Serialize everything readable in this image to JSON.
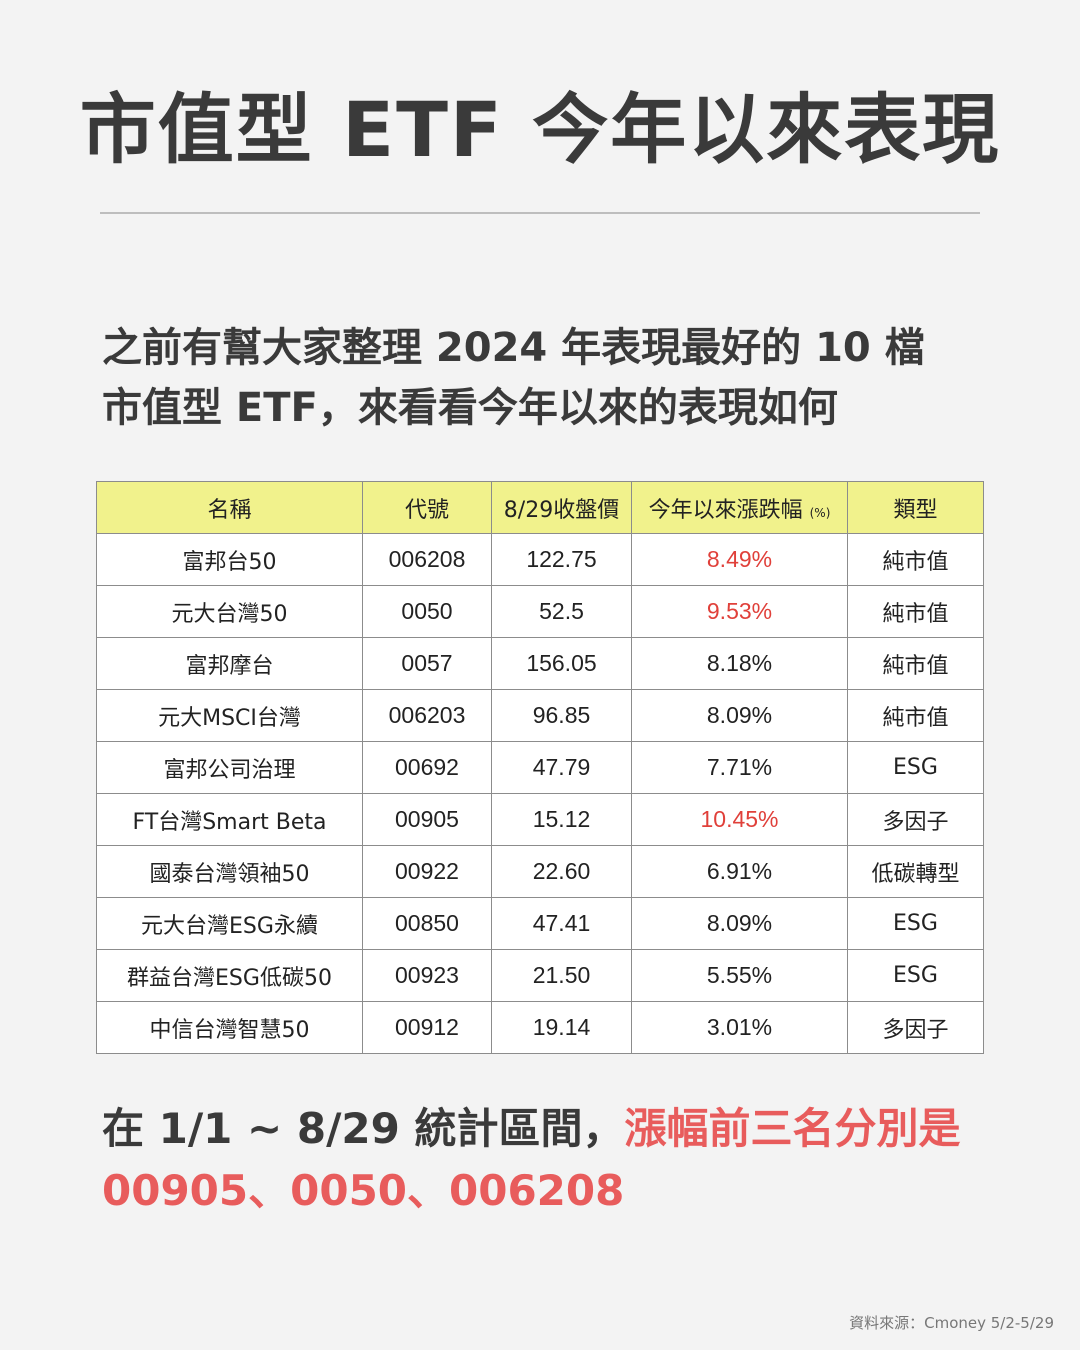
{
  "title": "市值型 ETF 今年以來表現",
  "intro": {
    "line1": "之前有幫大家整理 2024 年表現最好的 10 檔",
    "line2": "市值型 ETF，來看看今年以來的表現如何"
  },
  "table": {
    "headers": {
      "name": "名稱",
      "code": "代號",
      "price": "8/29收盤價",
      "change": "今年以來漲跌幅",
      "change_unit": "(%)",
      "type": "類型"
    },
    "rows": [
      {
        "name": "富邦台50",
        "code": "006208",
        "price": "122.75",
        "change": "8.49%",
        "type": "純市值",
        "highlight": true
      },
      {
        "name": "元大台灣50",
        "code": "0050",
        "price": "52.5",
        "change": "9.53%",
        "type": "純市值",
        "highlight": true
      },
      {
        "name": "富邦摩台",
        "code": "0057",
        "price": "156.05",
        "change": "8.18%",
        "type": "純市值",
        "highlight": false
      },
      {
        "name": "元大MSCI台灣",
        "code": "006203",
        "price": "96.85",
        "change": "8.09%",
        "type": "純市值",
        "highlight": false
      },
      {
        "name": "富邦公司治理",
        "code": "00692",
        "price": "47.79",
        "change": "7.71%",
        "type": "ESG",
        "highlight": false
      },
      {
        "name": "FT台灣Smart Beta",
        "code": "00905",
        "price": "15.12",
        "change": "10.45%",
        "type": "多因子",
        "highlight": true
      },
      {
        "name": "國泰台灣領袖50",
        "code": "00922",
        "price": "22.60",
        "change": "6.91%",
        "type": "低碳轉型",
        "highlight": false
      },
      {
        "name": "元大台灣ESG永續",
        "code": "00850",
        "price": "47.41",
        "change": "8.09%",
        "type": "ESG",
        "highlight": false
      },
      {
        "name": "群益台灣ESG低碳50",
        "code": "00923",
        "price": "21.50",
        "change": "5.55%",
        "type": "ESG",
        "highlight": false
      },
      {
        "name": "中信台灣智慧50",
        "code": "00912",
        "price": "19.14",
        "change": "3.01%",
        "type": "多因子",
        "highlight": false
      }
    ]
  },
  "summary": {
    "prefix": "在 1/1 ~ 8/29 統計區間，",
    "highlight1": "漲幅前三名分別是",
    "highlight2": "00905、0050、006208"
  },
  "source": "資料來源：Cmoney 5/2-5/29",
  "colors": {
    "header_bg": "#f1f28c",
    "highlight_red": "#e0403a",
    "summary_red": "#e85c5c",
    "text": "#3a3a3a"
  }
}
